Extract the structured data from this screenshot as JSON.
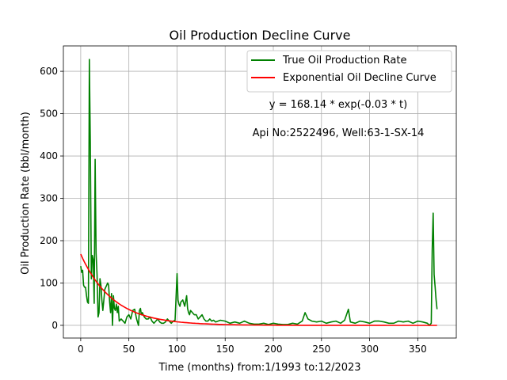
{
  "chart_data": {
    "type": "line",
    "title": "Oil Production Decline Curve",
    "xlabel": "Time (months) from:1/1993 to:12/2023",
    "ylabel": "Oil Production Rate (bbl/month)",
    "xlim": [
      -18,
      390
    ],
    "ylim": [
      -30,
      660
    ],
    "xticks": [
      0,
      50,
      100,
      150,
      200,
      250,
      300,
      350
    ],
    "yticks": [
      0,
      100,
      200,
      300,
      400,
      500,
      600
    ],
    "grid": true,
    "legend_position": "top-right",
    "series": [
      {
        "name": "True Oil Production Rate",
        "color": "#008000",
        "x": [
          0,
          1,
          2,
          3,
          4,
          5,
          6,
          7,
          8,
          9,
          10,
          11,
          12,
          13,
          14,
          15,
          16,
          17,
          18,
          19,
          20,
          21,
          22,
          23,
          24,
          25,
          26,
          27,
          28,
          29,
          30,
          31,
          32,
          33,
          34,
          35,
          36,
          37,
          38,
          39,
          40,
          42,
          44,
          46,
          48,
          50,
          52,
          54,
          56,
          58,
          60,
          61,
          62,
          63,
          64,
          66,
          68,
          70,
          72,
          74,
          76,
          78,
          80,
          82,
          84,
          86,
          88,
          90,
          92,
          94,
          96,
          98,
          100,
          101,
          102,
          103,
          104,
          106,
          108,
          110,
          111,
          112,
          113,
          114,
          116,
          118,
          120,
          122,
          124,
          126,
          128,
          130,
          132,
          134,
          136,
          138,
          140,
          145,
          150,
          155,
          160,
          165,
          170,
          175,
          180,
          185,
          190,
          195,
          200,
          205,
          210,
          215,
          220,
          225,
          230,
          233,
          236,
          240,
          245,
          250,
          255,
          260,
          265,
          270,
          274,
          276,
          278,
          280,
          285,
          290,
          295,
          300,
          305,
          310,
          315,
          320,
          325,
          330,
          335,
          340,
          345,
          350,
          355,
          360,
          362,
          364,
          365,
          366,
          367,
          368,
          369,
          370
        ],
        "y": [
          140,
          125,
          130,
          95,
          90,
          90,
          70,
          55,
          52,
          628,
          430,
          110,
          165,
          155,
          52,
          392,
          170,
          120,
          20,
          30,
          110,
          95,
          60,
          35,
          60,
          85,
          90,
          95,
          100,
          95,
          55,
          30,
          75,
          0,
          70,
          40,
          35,
          50,
          30,
          45,
          10,
          15,
          10,
          5,
          20,
          25,
          15,
          35,
          38,
          15,
          0,
          35,
          40,
          25,
          30,
          20,
          15,
          15,
          20,
          10,
          5,
          10,
          15,
          8,
          5,
          5,
          8,
          15,
          10,
          5,
          10,
          12,
          122,
          60,
          50,
          45,
          55,
          60,
          45,
          70,
          40,
          30,
          25,
          35,
          30,
          25,
          25,
          15,
          20,
          25,
          15,
          10,
          10,
          15,
          10,
          12,
          8,
          12,
          10,
          5,
          8,
          5,
          10,
          5,
          3,
          3,
          5,
          2,
          5,
          3,
          2,
          2,
          5,
          3,
          10,
          30,
          15,
          10,
          8,
          10,
          5,
          8,
          10,
          5,
          12,
          25,
          38,
          8,
          5,
          10,
          8,
          5,
          10,
          10,
          8,
          5,
          5,
          10,
          8,
          10,
          5,
          10,
          8,
          5,
          0,
          5,
          180,
          265,
          120,
          90,
          60,
          38
        ]
      },
      {
        "name": "Exponential Oil Decline Curve",
        "color": "#ff0000",
        "equation": {
          "a": 168.14,
          "b": -0.03
        },
        "x_start": 0,
        "x_end": 370
      }
    ],
    "annotations": [
      "y = 168.14 * exp(-0.03 * t)",
      "Api No:2522496, Well:63-1-SX-14"
    ]
  }
}
